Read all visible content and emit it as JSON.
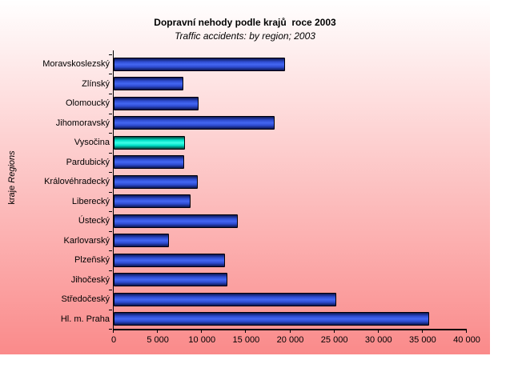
{
  "chart_data": {
    "type": "bar",
    "orientation": "horizontal",
    "title": "Dopravní nehody podle krajů  roce 2003",
    "subtitle": "Traffic accidents: by region; 2003",
    "ylabel_cz": "kraje",
    "ylabel_en": "Regions",
    "xlabel": "",
    "categories": [
      "Moravskoslezský",
      "Zlínský",
      "Olomoucký",
      "Jihomoravský",
      "Vysočina",
      "Pardubický",
      "Královéhradecký",
      "Liberecký",
      "Ústecký",
      "Karlovarský",
      "Plzeňský",
      "Jihočeský",
      "Středočeský",
      "Hl. m. Praha"
    ],
    "values": [
      19400,
      7900,
      9600,
      18200,
      8100,
      8000,
      9500,
      8700,
      14100,
      6300,
      12600,
      12900,
      25200,
      35700
    ],
    "highlighted_category": "Vysočina",
    "highlighted_index": 4,
    "xlim": [
      0,
      40000
    ],
    "xticks": [
      "0",
      "5 000",
      "10 000",
      "15 000",
      "20 000",
      "25 000",
      "30 000",
      "35 000",
      "40 000"
    ],
    "grid": false,
    "legend": false
  },
  "colors": {
    "bg_top": "#ffffff",
    "bg_bottom": "#fa8a8a",
    "bar_blue_mid": "#4467f2",
    "bar_blue_body": "#2e4cd0",
    "bar_blue_dark": "#0c1550",
    "bar_cyan_mid": "#40ffe8",
    "bar_cyan_body": "#00e0c8",
    "bar_cyan_dark": "#004036",
    "bar_border": "#000008",
    "text": "#000000"
  }
}
